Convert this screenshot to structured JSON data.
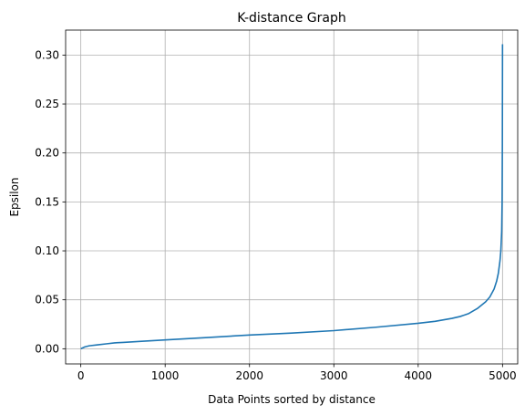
{
  "chart_data": {
    "type": "line",
    "title": "K-distance Graph",
    "xlabel": "Data Points sorted by distance",
    "ylabel": "Epsilon",
    "xlim": [
      -180,
      5180
    ],
    "ylim": [
      -0.0155,
      0.3255
    ],
    "xticks": [
      0,
      1000,
      2000,
      3000,
      4000,
      5000
    ],
    "xtick_labels": [
      "0",
      "1000",
      "2000",
      "3000",
      "4000",
      "5000"
    ],
    "yticks": [
      0.0,
      0.05,
      0.1,
      0.15,
      0.2,
      0.25,
      0.3
    ],
    "ytick_labels": [
      "0.00",
      "0.05",
      "0.10",
      "0.15",
      "0.20",
      "0.25",
      "0.30"
    ],
    "grid": true,
    "legend": "none",
    "series": [
      {
        "color": "#1f77b4",
        "x": [
          0,
          50,
          100,
          200,
          300,
          400,
          500,
          700,
          1000,
          1500,
          2000,
          2500,
          3000,
          3500,
          4000,
          4200,
          4400,
          4500,
          4600,
          4700,
          4800,
          4850,
          4900,
          4930,
          4950,
          4970,
          4980,
          4990,
          4995,
          4998,
          5000
        ],
        "y": [
          0.0,
          0.002,
          0.003,
          0.004,
          0.005,
          0.006,
          0.0065,
          0.0075,
          0.009,
          0.0115,
          0.014,
          0.016,
          0.0185,
          0.022,
          0.026,
          0.028,
          0.031,
          0.033,
          0.036,
          0.041,
          0.048,
          0.053,
          0.061,
          0.069,
          0.077,
          0.09,
          0.1,
          0.12,
          0.15,
          0.21,
          0.311
        ]
      }
    ]
  }
}
